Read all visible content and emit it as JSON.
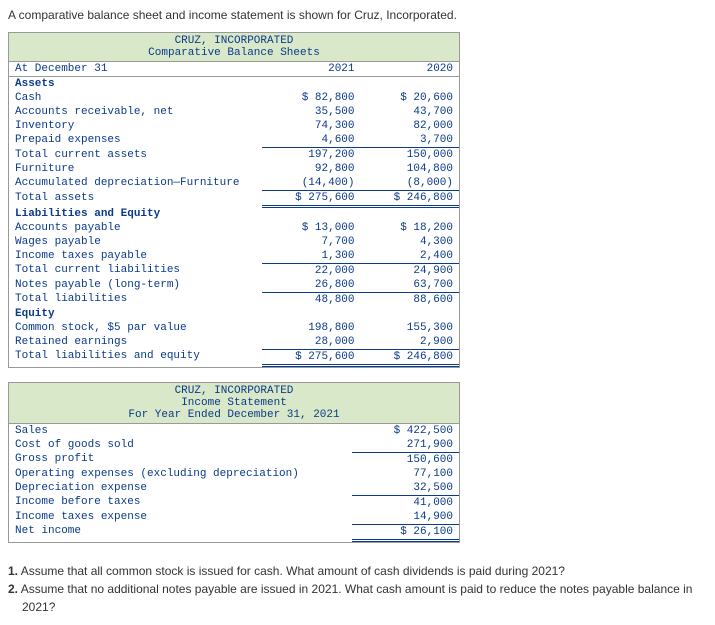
{
  "intro": "A comparative balance sheet and income statement is shown for Cruz, Incorporated.",
  "bs": {
    "title1": "CRUZ, INCORPORATED",
    "title2": "Comparative Balance Sheets",
    "col0": "At December 31",
    "col1": "2021",
    "col2": "2020",
    "sections": {
      "assets_h": "Assets",
      "liab_h": "Liabilities and Equity",
      "equity_h": "Equity"
    },
    "rows": {
      "cash": {
        "l": "Cash",
        "a": "$ 82,800",
        "b": "$ 20,600"
      },
      "ar": {
        "l": "Accounts receivable, net",
        "a": "35,500",
        "b": "43,700"
      },
      "inv": {
        "l": "Inventory",
        "a": "74,300",
        "b": "82,000"
      },
      "prep": {
        "l": "Prepaid expenses",
        "a": "4,600",
        "b": "3,700"
      },
      "tca": {
        "l": "Total current assets",
        "a": "197,200",
        "b": "150,000"
      },
      "furn": {
        "l": "Furniture",
        "a": "92,800",
        "b": "104,800"
      },
      "accdep": {
        "l": "Accumulated depreciation—Furniture",
        "a": "(14,400)",
        "b": "(8,000)"
      },
      "ta": {
        "l": "Total assets",
        "a": "$ 275,600",
        "b": "$ 246,800"
      },
      "ap": {
        "l": "Accounts payable",
        "a": "$ 13,000",
        "b": "$ 18,200"
      },
      "wp": {
        "l": "Wages payable",
        "a": "7,700",
        "b": "4,300"
      },
      "itp": {
        "l": "Income taxes payable",
        "a": "1,300",
        "b": "2,400"
      },
      "tcl": {
        "l": "Total current liabilities",
        "a": "22,000",
        "b": "24,900"
      },
      "np": {
        "l": "Notes payable (long-term)",
        "a": "26,800",
        "b": "63,700"
      },
      "tl": {
        "l": "Total liabilities",
        "a": "48,800",
        "b": "88,600"
      },
      "cs": {
        "l": "Common stock, $5 par value",
        "a": "198,800",
        "b": "155,300"
      },
      "re": {
        "l": "Retained earnings",
        "a": "28,000",
        "b": "2,900"
      },
      "tle": {
        "l": "Total liabilities and equity",
        "a": "$ 275,600",
        "b": "$ 246,800"
      }
    }
  },
  "is": {
    "title1": "CRUZ, INCORPORATED",
    "title2": "Income Statement",
    "title3": "For Year Ended December 31, 2021",
    "rows": {
      "sales": {
        "l": "Sales",
        "v": "$ 422,500"
      },
      "cogs": {
        "l": "Cost of goods sold",
        "v": "271,900"
      },
      "gp": {
        "l": "Gross profit",
        "v": "150,600"
      },
      "opex": {
        "l": "Operating expenses (excluding depreciation)",
        "v": "77,100"
      },
      "dep": {
        "l": "Depreciation expense",
        "v": "32,500"
      },
      "ibt": {
        "l": "Income before taxes",
        "v": "41,000"
      },
      "tax": {
        "l": "Income taxes expense",
        "v": "14,900"
      },
      "ni": {
        "l": "Net income",
        "v": "$ 26,100"
      }
    }
  },
  "q": {
    "q1n": "1.",
    "q1": "Assume that all common stock is issued for cash. What amount of cash dividends is paid during 2021?",
    "q2n": "2.",
    "q2a": "Assume that no additional notes payable are issued in 2021. What cash amount is paid to reduce the notes payable balance in",
    "q2b": "2021?"
  }
}
